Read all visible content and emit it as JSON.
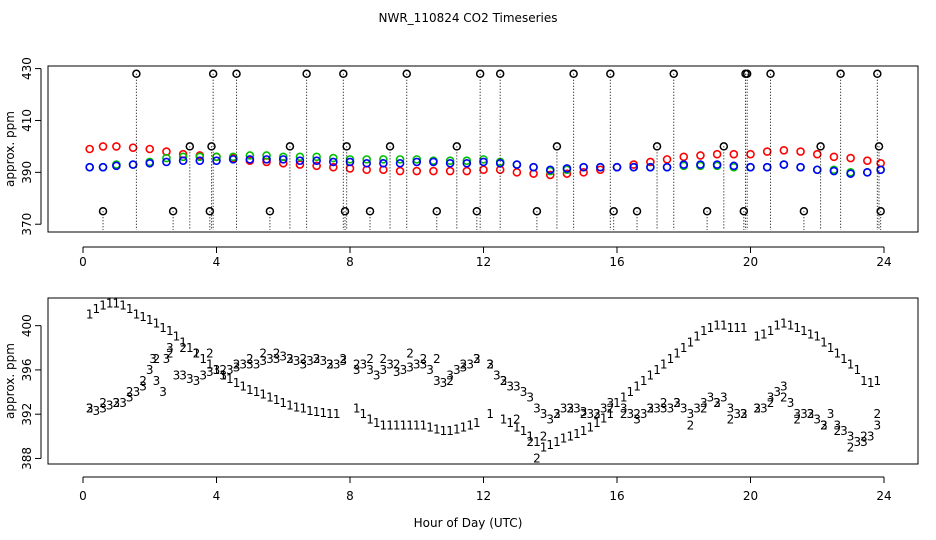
{
  "chart_data": [
    {
      "type": "scatter",
      "title": "NWR_110824  CO2 Timeseries",
      "xlabel": "",
      "ylabel": "approx. ppm",
      "xlim": [
        -1,
        25
      ],
      "ylim": [
        367,
        431
      ],
      "xticks": [
        0,
        4,
        8,
        12,
        16,
        20,
        24
      ],
      "xtick_labels": [
        "0",
        "4",
        "8",
        "12",
        "16",
        "20",
        "24"
      ],
      "yticks": [
        370,
        390,
        410,
        430
      ],
      "ytick_labels": [
        "370",
        "390",
        "410",
        "430"
      ],
      "colors": {
        "red": "#ff0000",
        "green": "#00c000",
        "blue": "#0000ff",
        "black": "#000000",
        "cyan": "#00c0c0"
      },
      "series": [
        {
          "name": "red",
          "marker": "circle",
          "x": [
            0.2,
            0.6,
            1.0,
            1.5,
            2.0,
            2.5,
            3.0,
            3.5,
            4.0,
            4.5,
            5.0,
            5.5,
            6.0,
            6.5,
            7.0,
            7.5,
            8.0,
            8.5,
            9.0,
            9.5,
            10.0,
            10.5,
            11.0,
            11.5,
            12.0,
            12.5,
            13.0,
            13.5,
            14.0,
            14.5,
            15.0,
            15.5,
            16.0,
            16.5,
            17.0,
            17.5,
            18.0,
            18.5,
            19.0,
            19.5,
            20.0,
            20.5,
            21.0,
            21.5,
            22.0,
            22.5,
            23.0,
            23.5,
            23.9
          ],
          "y": [
            399,
            400,
            400,
            399.5,
            399,
            398,
            397,
            396.5,
            396,
            395.5,
            394.5,
            394,
            393.5,
            393,
            392.5,
            392,
            391.5,
            391,
            391,
            390.5,
            390.5,
            390.5,
            390.5,
            390.5,
            391,
            391,
            390,
            389.5,
            389,
            389.5,
            390,
            391,
            392,
            393,
            394,
            395,
            396,
            396.5,
            397,
            397,
            397,
            398,
            398.5,
            398,
            397,
            396,
            395.5,
            394.5,
            393.5
          ]
        },
        {
          "name": "green",
          "marker": "circle",
          "x": [
            0.2,
            0.6,
            1.0,
            1.5,
            2.0,
            2.5,
            3.0,
            3.5,
            4.0,
            4.5,
            5.0,
            5.5,
            6.0,
            6.5,
            7.0,
            7.5,
            8.0,
            8.5,
            9.0,
            9.5,
            10.0,
            10.5,
            11.0,
            11.5,
            12.0,
            12.5,
            13.0,
            13.5,
            14.0,
            14.5,
            15.0,
            15.5,
            16.0,
            16.5,
            17.0,
            17.5,
            18.0,
            18.5,
            19.0,
            19.5,
            20.0,
            20.5,
            21.0,
            21.5,
            22.0,
            22.5,
            23.0,
            23.5,
            23.9
          ],
          "y": [
            392,
            392,
            393,
            393,
            394,
            395.5,
            396,
            396,
            396,
            396,
            396.5,
            396.5,
            396,
            396,
            396,
            395.5,
            395,
            395,
            395,
            395,
            395,
            394.5,
            394.5,
            394.5,
            395,
            394,
            393,
            392,
            390.5,
            391,
            392,
            392,
            392,
            392,
            392,
            392,
            392.5,
            392.5,
            392.5,
            392,
            392,
            392,
            393,
            392,
            391,
            391,
            390,
            390,
            391
          ]
        },
        {
          "name": "blue",
          "marker": "circle",
          "x": [
            0.2,
            0.6,
            1.0,
            1.5,
            2.0,
            2.5,
            3.0,
            3.5,
            4.0,
            4.5,
            5.0,
            5.5,
            6.0,
            6.5,
            7.0,
            7.5,
            8.0,
            8.5,
            9.0,
            9.5,
            10.0,
            10.5,
            11.0,
            11.5,
            12.0,
            12.5,
            13.0,
            13.5,
            14.0,
            14.5,
            15.0,
            15.5,
            16.0,
            16.5,
            17.0,
            17.5,
            18.0,
            18.5,
            19.0,
            19.5,
            20.0,
            20.5,
            21.0,
            21.5,
            22.0,
            22.5,
            23.0,
            23.5,
            23.9
          ],
          "y": [
            392,
            392,
            392.5,
            393,
            393.5,
            394,
            394.5,
            394.5,
            394.5,
            395,
            395,
            395,
            395,
            394.5,
            394.5,
            394,
            394,
            393.5,
            393.5,
            393.5,
            394,
            394,
            393.5,
            393.5,
            394,
            393.5,
            393,
            392,
            391,
            391.5,
            392,
            392,
            392,
            392,
            392,
            392,
            393,
            393,
            393,
            392.5,
            392,
            392,
            393,
            392,
            391,
            390.5,
            389.5,
            390,
            391
          ]
        },
        {
          "name": "black",
          "marker": "open-circle-with-dotted-drop",
          "x": [
            0.6,
            1.6,
            2.7,
            3.2,
            3.8,
            3.85,
            3.9,
            4.6,
            5.6,
            6.2,
            6.7,
            7.8,
            7.85,
            7.9,
            8.6,
            9.2,
            9.7,
            10.6,
            11.2,
            11.8,
            11.9,
            12.5,
            13.6,
            14.2,
            14.7,
            15.8,
            15.9,
            16.6,
            17.2,
            17.7,
            18.7,
            19.2,
            19.8,
            19.85,
            19.9,
            20.6,
            21.6,
            22.1,
            22.7,
            23.8,
            23.85,
            23.9
          ],
          "y": [
            375,
            428,
            375,
            400,
            375,
            400,
            428,
            428,
            375,
            400,
            428,
            428,
            375,
            400,
            375,
            400,
            428,
            375,
            400,
            375,
            428,
            428,
            375,
            400,
            428,
            428,
            375,
            375,
            400,
            428,
            375,
            400,
            375,
            428,
            428,
            428,
            375,
            400,
            428,
            428,
            400,
            375
          ]
        }
      ]
    },
    {
      "type": "scatter",
      "title": "",
      "xlabel": "Hour of Day (UTC)",
      "ylabel": "approx. ppm",
      "xlim": [
        -1,
        25
      ],
      "ylim": [
        387.5,
        402.5
      ],
      "xticks": [
        0,
        4,
        8,
        12,
        16,
        20,
        24
      ],
      "xtick_labels": [
        "0",
        "4",
        "8",
        "12",
        "16",
        "20",
        "24"
      ],
      "yticks": [
        388,
        392,
        396,
        400
      ],
      "ytick_labels": [
        "388",
        "392",
        "396",
        "400"
      ],
      "series": [
        {
          "name": "red",
          "marker": "glyph",
          "glyph": "1",
          "x": [
            0.2,
            0.4,
            0.6,
            0.8,
            1.0,
            1.2,
            1.4,
            1.6,
            1.8,
            2.0,
            2.2,
            2.4,
            2.6,
            2.8,
            3.0,
            3.2,
            3.4,
            3.6,
            3.8,
            4.0,
            4.2,
            4.4,
            4.6,
            4.8,
            5.0,
            5.2,
            5.4,
            5.6,
            5.8,
            6.0,
            6.2,
            6.4,
            6.6,
            6.8,
            7.0,
            7.2,
            7.4,
            7.6,
            8.2,
            8.4,
            8.6,
            8.8,
            9.0,
            9.2,
            9.4,
            9.6,
            9.8,
            10.0,
            10.2,
            10.4,
            10.6,
            10.8,
            11.0,
            11.2,
            11.4,
            11.6,
            11.8,
            12.2,
            12.6,
            12.8,
            13.0,
            13.2,
            13.4,
            13.6,
            13.8,
            14.0,
            14.2,
            14.4,
            14.6,
            14.8,
            15.0,
            15.2,
            15.4,
            15.6,
            15.8,
            16.0,
            16.2,
            16.4,
            16.6,
            16.8,
            17.0,
            17.2,
            17.4,
            17.6,
            17.8,
            18.0,
            18.2,
            18.4,
            18.6,
            18.8,
            19.0,
            19.2,
            19.4,
            19.6,
            19.8,
            20.2,
            20.4,
            20.6,
            20.8,
            21.0,
            21.2,
            21.4,
            21.6,
            21.8,
            22.0,
            22.2,
            22.4,
            22.6,
            22.8,
            23.0,
            23.2,
            23.4,
            23.6,
            23.8
          ],
          "y": [
            401.0,
            401.5,
            401.8,
            402.0,
            402.0,
            401.8,
            401.5,
            401.0,
            400.8,
            400.5,
            400.2,
            399.8,
            399.5,
            399.0,
            398.5,
            398.0,
            397.5,
            397.0,
            396.5,
            396.0,
            395.5,
            395.2,
            394.8,
            394.5,
            394.2,
            394.0,
            393.8,
            393.5,
            393.3,
            393.0,
            392.8,
            392.6,
            392.5,
            392.3,
            392.2,
            392.1,
            392.0,
            392.0,
            392.5,
            392.0,
            391.5,
            391.2,
            391.0,
            391.0,
            391.0,
            391.0,
            391.0,
            391.0,
            391.0,
            390.8,
            390.6,
            390.5,
            390.5,
            390.6,
            390.8,
            391.0,
            391.2,
            392.0,
            391.5,
            391.2,
            390.8,
            390.5,
            390.0,
            389.5,
            389.0,
            389.2,
            389.5,
            389.8,
            390.0,
            390.2,
            390.5,
            390.8,
            391.2,
            391.6,
            392.0,
            393.0,
            393.5,
            394.0,
            394.5,
            395.0,
            395.5,
            396.0,
            396.5,
            397.0,
            397.5,
            398.0,
            398.5,
            399.0,
            399.5,
            399.8,
            400.0,
            400.0,
            399.8,
            399.8,
            399.8,
            399.0,
            399.2,
            399.5,
            400.0,
            400.2,
            400.0,
            399.8,
            399.5,
            399.2,
            399.0,
            398.5,
            398.0,
            397.5,
            397.0,
            396.5,
            396.0,
            395.0,
            394.8,
            395.0
          ]
        },
        {
          "name": "green",
          "marker": "glyph",
          "glyph": "2",
          "x": [
            0.2,
            0.6,
            1.0,
            1.4,
            1.8,
            2.2,
            2.6,
            3.0,
            3.4,
            3.8,
            4.2,
            4.6,
            5.0,
            5.4,
            5.8,
            6.2,
            6.6,
            7.0,
            7.4,
            7.8,
            8.2,
            8.6,
            9.0,
            9.4,
            9.8,
            10.2,
            10.6,
            11.0,
            11.4,
            11.8,
            12.2,
            12.6,
            13.0,
            13.4,
            13.6,
            13.8,
            14.2,
            14.6,
            15.0,
            15.4,
            15.8,
            16.2,
            16.6,
            17.0,
            17.4,
            17.8,
            18.2,
            18.6,
            19.0,
            19.4,
            19.8,
            20.2,
            20.6,
            21.0,
            21.4,
            21.8,
            22.2,
            22.6,
            23.0,
            23.4,
            23.8
          ],
          "y": [
            392.5,
            393.0,
            393.0,
            394.0,
            395.0,
            397.0,
            397.5,
            398.0,
            397.5,
            397.5,
            396.0,
            396.5,
            397.0,
            397.5,
            397.5,
            397.0,
            397.0,
            397.0,
            396.5,
            397.0,
            396.5,
            397.0,
            397.0,
            396.5,
            397.5,
            397.0,
            397.0,
            395.0,
            396.5,
            397.0,
            396.5,
            395.0,
            391.5,
            389.5,
            388.0,
            390.0,
            392.0,
            392.5,
            392.0,
            392.0,
            392.5,
            392.0,
            392.0,
            392.5,
            393.0,
            393.0,
            391.0,
            392.5,
            393.0,
            391.5,
            392.0,
            392.5,
            393.0,
            393.5,
            391.5,
            392.0,
            391.0,
            390.5,
            389.0,
            390.0,
            392.0
          ]
        },
        {
          "name": "blue",
          "marker": "glyph",
          "glyph": "3",
          "x": [
            0.2,
            0.4,
            0.6,
            0.8,
            1.0,
            1.2,
            1.4,
            1.6,
            1.8,
            2.0,
            2.1,
            2.2,
            2.4,
            2.5,
            2.6,
            2.8,
            3.0,
            3.2,
            3.4,
            3.6,
            3.8,
            4.0,
            4.2,
            4.4,
            4.6,
            4.8,
            5.0,
            5.2,
            5.4,
            5.6,
            5.8,
            6.0,
            6.2,
            6.4,
            6.6,
            6.8,
            7.0,
            7.2,
            7.4,
            7.6,
            7.8,
            8.2,
            8.4,
            8.6,
            8.8,
            9.0,
            9.2,
            9.4,
            9.6,
            9.8,
            10.0,
            10.2,
            10.4,
            10.6,
            10.8,
            11.0,
            11.2,
            11.4,
            11.6,
            11.8,
            12.2,
            12.4,
            12.6,
            12.8,
            13.0,
            13.2,
            13.4,
            13.6,
            13.8,
            14.0,
            14.2,
            14.4,
            14.6,
            14.8,
            15.0,
            15.2,
            15.4,
            15.6,
            15.8,
            16.2,
            16.4,
            16.6,
            16.8,
            17.0,
            17.2,
            17.4,
            17.6,
            17.8,
            18.0,
            18.2,
            18.4,
            18.6,
            18.8,
            19.0,
            19.2,
            19.4,
            19.6,
            19.8,
            20.2,
            20.4,
            20.6,
            20.8,
            21.0,
            21.2,
            21.4,
            21.6,
            21.8,
            22.0,
            22.2,
            22.4,
            22.6,
            22.8,
            23.0,
            23.2,
            23.4,
            23.6,
            23.8
          ],
          "y": [
            392.5,
            392.3,
            392.5,
            392.8,
            393.0,
            393.0,
            393.5,
            394.0,
            394.5,
            396.0,
            397.0,
            395.0,
            394.0,
            397.0,
            398.0,
            395.5,
            395.5,
            395.2,
            395.0,
            395.5,
            395.8,
            396.0,
            395.5,
            396.0,
            396.2,
            396.5,
            396.5,
            396.5,
            396.8,
            397.0,
            397.0,
            397.2,
            397.0,
            396.8,
            396.5,
            396.8,
            397.0,
            396.8,
            396.5,
            396.5,
            396.8,
            396.0,
            396.5,
            396.0,
            395.5,
            396.0,
            396.5,
            395.8,
            396.0,
            396.2,
            396.5,
            396.5,
            396.0,
            395.0,
            394.8,
            395.5,
            396.0,
            396.2,
            396.5,
            397.0,
            396.5,
            395.5,
            395.0,
            394.5,
            394.5,
            394.0,
            393.5,
            392.5,
            392.0,
            391.5,
            392.0,
            392.5,
            392.5,
            392.5,
            392.2,
            392.0,
            392.0,
            392.5,
            393.0,
            392.5,
            392.0,
            391.5,
            392.0,
            392.5,
            392.5,
            392.5,
            392.5,
            393.0,
            392.5,
            392.0,
            392.5,
            393.0,
            393.5,
            393.0,
            393.5,
            392.5,
            392.0,
            392.0,
            392.5,
            392.5,
            393.5,
            394.0,
            394.5,
            393.0,
            392.0,
            392.0,
            392.0,
            391.5,
            391.0,
            392.0,
            391.0,
            390.5,
            390.0,
            389.5,
            389.5,
            390.0,
            391.0
          ]
        }
      ]
    }
  ]
}
